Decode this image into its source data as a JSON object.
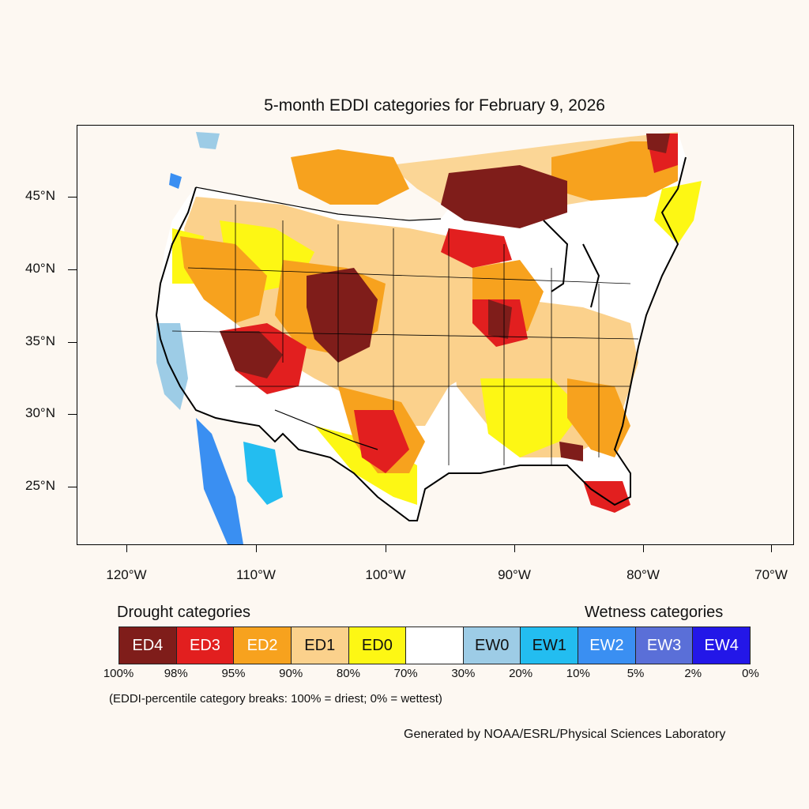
{
  "title": "5-month EDDI categories for February 9, 2026",
  "axes": {
    "y_labels": [
      "45°N",
      "40°N",
      "35°N",
      "30°N",
      "25°N"
    ],
    "x_labels": [
      "120°W",
      "110°W",
      "100°W",
      "90°W",
      "80°W",
      "70°W"
    ]
  },
  "legend": {
    "drought_heading": "Drought categories",
    "wetness_heading": "Wetness categories",
    "categories": [
      {
        "label": "ED4",
        "color": "#7f1d1a",
        "text_color": "#ffffff"
      },
      {
        "label": "ED3",
        "color": "#e21f1f",
        "text_color": "#ffffff"
      },
      {
        "label": "ED2",
        "color": "#f7a21e",
        "text_color": "#ffffff"
      },
      {
        "label": "ED1",
        "color": "#fbd18c",
        "text_color": "#111111"
      },
      {
        "label": "ED0",
        "color": "#fdf714",
        "text_color": "#111111"
      },
      {
        "label": "",
        "color": "#ffffff",
        "text_color": "#111111"
      },
      {
        "label": "EW0",
        "color": "#9dcce6",
        "text_color": "#111111"
      },
      {
        "label": "EW1",
        "color": "#23bdf0",
        "text_color": "#111111"
      },
      {
        "label": "EW2",
        "color": "#3a8ff2",
        "text_color": "#ffffff"
      },
      {
        "label": "EW3",
        "color": "#5a6fd8",
        "text_color": "#ffffff"
      },
      {
        "label": "EW4",
        "color": "#2317e8",
        "text_color": "#ffffff"
      }
    ],
    "percentiles": [
      "100%",
      "98%",
      "95%",
      "90%",
      "80%",
      "70%",
      "30%",
      "20%",
      "10%",
      "5%",
      "2%",
      "0%"
    ]
  },
  "note": "(EDDI-percentile category breaks: 100% = driest; 0% = wettest)",
  "credit": "Generated by NOAA/ESRL/Physical Sciences Laboratory"
}
